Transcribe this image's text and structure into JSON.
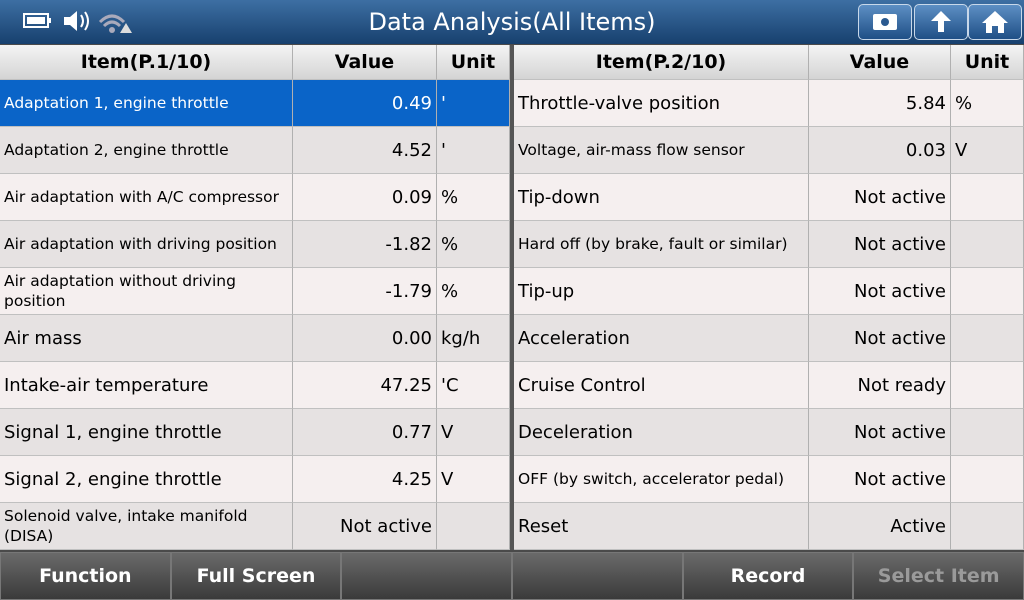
{
  "header": {
    "title": "Data Analysis(All Items)"
  },
  "tables": [
    {
      "columns": [
        "Item(P.1/10)",
        "Value",
        "Unit"
      ],
      "rows": [
        [
          "Adaptation 1, engine throttle",
          "0.49",
          "'"
        ],
        [
          "Adaptation 2, engine throttle",
          "4.52",
          "'"
        ],
        [
          "Air adaptation with A/C compressor",
          "0.09",
          "%"
        ],
        [
          "Air adaptation with driving position",
          "-1.82",
          "%"
        ],
        [
          "Air adaptation without driving position",
          "-1.79",
          "%"
        ],
        [
          "Air mass",
          "0.00",
          "kg/h"
        ],
        [
          "Intake-air temperature",
          "47.25",
          "'C"
        ],
        [
          "Signal 1, engine throttle",
          "0.77",
          "V"
        ],
        [
          "Signal 2, engine throttle",
          "4.25",
          "V"
        ],
        [
          "Solenoid valve, intake manifold (DISA)",
          "Not active",
          null
        ]
      ]
    },
    {
      "columns": [
        "Item(P.2/10)",
        "Value",
        "Unit"
      ],
      "rows": [
        [
          "Throttle-valve position",
          "5.84",
          "%"
        ],
        [
          "Voltage, air-mass flow sensor",
          "0.03",
          "V"
        ],
        [
          "Tip-down",
          "Not active",
          null
        ],
        [
          "Hard off (by brake, fault or similar)",
          "Not active",
          null
        ],
        [
          "Tip-up",
          "Not active",
          null
        ],
        [
          "Acceleration",
          "Not active",
          null
        ],
        [
          "Cruise Control",
          "Not ready",
          null
        ],
        [
          "Deceleration",
          "Not active",
          null
        ],
        [
          "OFF (by switch, accelerator pedal)",
          "Not active",
          null
        ],
        [
          "Reset",
          "Active",
          null
        ]
      ]
    }
  ],
  "footer": {
    "buttons": [
      "Function",
      "Full Screen",
      "Record",
      "Select Item"
    ]
  }
}
